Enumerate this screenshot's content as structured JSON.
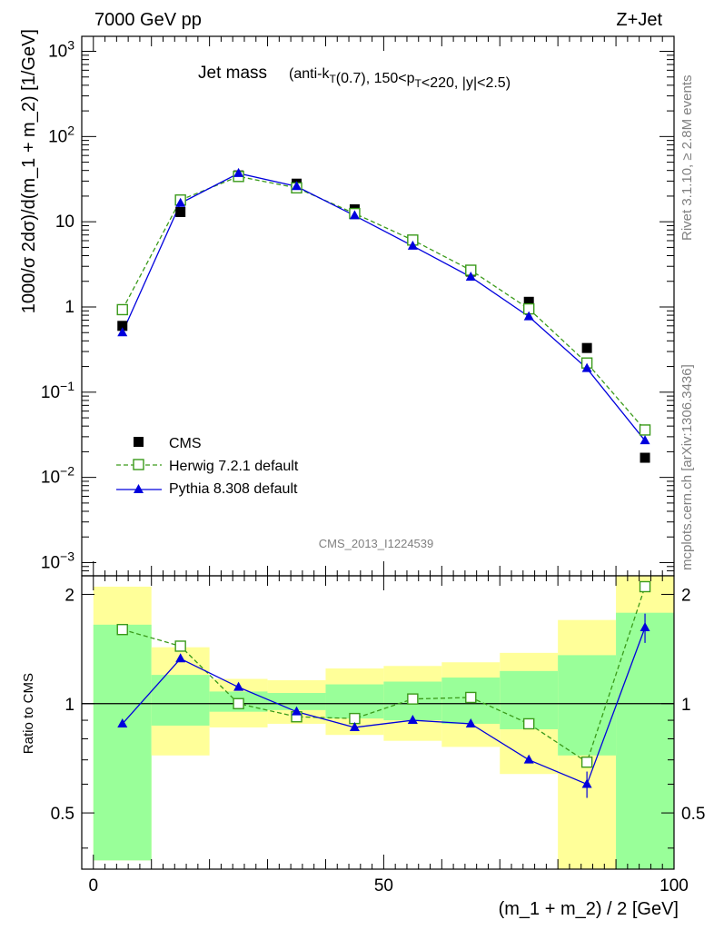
{
  "header": {
    "left": "7000 GeV pp",
    "right": "Z+Jet"
  },
  "side": {
    "rivet": "Rivet 3.1.10, ≥ 2.8M events",
    "mcplots": "mcplots.cern.ch [arXiv:1306.3436]"
  },
  "main_title": {
    "big": "Jet mass",
    "small": "(anti-k_T(0.7), 150<p_T<220, |y|<2.5)"
  },
  "analysis_label": "CMS_2013_I1224539",
  "colors": {
    "data": "#000000",
    "herwig": "#3a9a1a",
    "pythia": "#0000dd",
    "band_yellow": "#ffff99",
    "band_green": "#99ff99"
  },
  "chart_data": [
    {
      "type": "line",
      "scale": "log",
      "ylabel": "1000/σ 2dσ)/d(m_1 + m_2) [1/GeV]",
      "ylim": [
        0.0007,
        1500
      ],
      "xlim": [
        -2,
        100
      ],
      "ytick_labels": [
        "10^-3",
        "10^-2",
        "10^-1",
        "1",
        "10",
        "10^2",
        "10^3"
      ],
      "legend_position": "bottom-left",
      "x": [
        5,
        15,
        25,
        35,
        45,
        55,
        65,
        75,
        85,
        95
      ],
      "series": [
        {
          "name": "CMS",
          "marker": "square-filled",
          "values": [
            0.6,
            13,
            35,
            28,
            14,
            6,
            2.6,
            1.15,
            0.33,
            0.017
          ]
        },
        {
          "name": "Herwig 7.2.1 default",
          "marker": "square-open",
          "line": "dashed",
          "values": [
            0.93,
            18,
            34,
            25,
            12.5,
            6.1,
            2.7,
            0.95,
            0.22,
            0.036
          ]
        },
        {
          "name": "Pythia 8.308 default",
          "marker": "triangle",
          "line": "solid",
          "values": [
            0.5,
            16.5,
            37,
            26,
            11.8,
            5.2,
            2.25,
            0.77,
            0.19,
            0.027
          ]
        }
      ]
    },
    {
      "type": "line",
      "ylabel": "Ratio to CMS",
      "xlabel": "(m_1 + m_2) / 2 [GeV]",
      "ylim": [
        0.35,
        2.25
      ],
      "xlim": [
        -2,
        100
      ],
      "yticks": [
        0.5,
        1,
        2
      ],
      "ytick_labels": [
        "0.5",
        "1",
        "2"
      ],
      "xticks": [
        0,
        50,
        100
      ],
      "xtick_labels": [
        "0",
        "50",
        "100"
      ],
      "x": [
        5,
        15,
        25,
        35,
        45,
        55,
        65,
        75,
        85,
        95
      ],
      "bins": [
        [
          0,
          10
        ],
        [
          10,
          20
        ],
        [
          20,
          30
        ],
        [
          30,
          40
        ],
        [
          40,
          50
        ],
        [
          50,
          60
        ],
        [
          60,
          70
        ],
        [
          70,
          80
        ],
        [
          80,
          90
        ],
        [
          90,
          100
        ]
      ],
      "band_yellow": [
        [
          0.37,
          2.1
        ],
        [
          0.72,
          1.43
        ],
        [
          0.86,
          1.17
        ],
        [
          0.88,
          1.16
        ],
        [
          0.82,
          1.25
        ],
        [
          0.79,
          1.27
        ],
        [
          0.76,
          1.3
        ],
        [
          0.64,
          1.38
        ],
        [
          0.35,
          1.7
        ],
        [
          0.35,
          2.3
        ]
      ],
      "band_green": [
        [
          0.37,
          1.65
        ],
        [
          0.87,
          1.2
        ],
        [
          0.95,
          1.08
        ],
        [
          0.96,
          1.07
        ],
        [
          0.91,
          1.13
        ],
        [
          0.9,
          1.15
        ],
        [
          0.88,
          1.18
        ],
        [
          0.85,
          1.23
        ],
        [
          0.72,
          1.36
        ],
        [
          0.35,
          1.78
        ]
      ],
      "series": [
        {
          "name": "Herwig 7.2.1 default",
          "values": [
            1.6,
            1.44,
            1.0,
            0.92,
            0.91,
            1.03,
            1.04,
            0.88,
            0.69,
            2.1
          ]
        },
        {
          "name": "Pythia 8.308 default",
          "values": [
            0.88,
            1.33,
            1.11,
            0.95,
            0.86,
            0.9,
            0.88,
            0.7,
            0.6,
            1.62
          ]
        }
      ]
    }
  ]
}
